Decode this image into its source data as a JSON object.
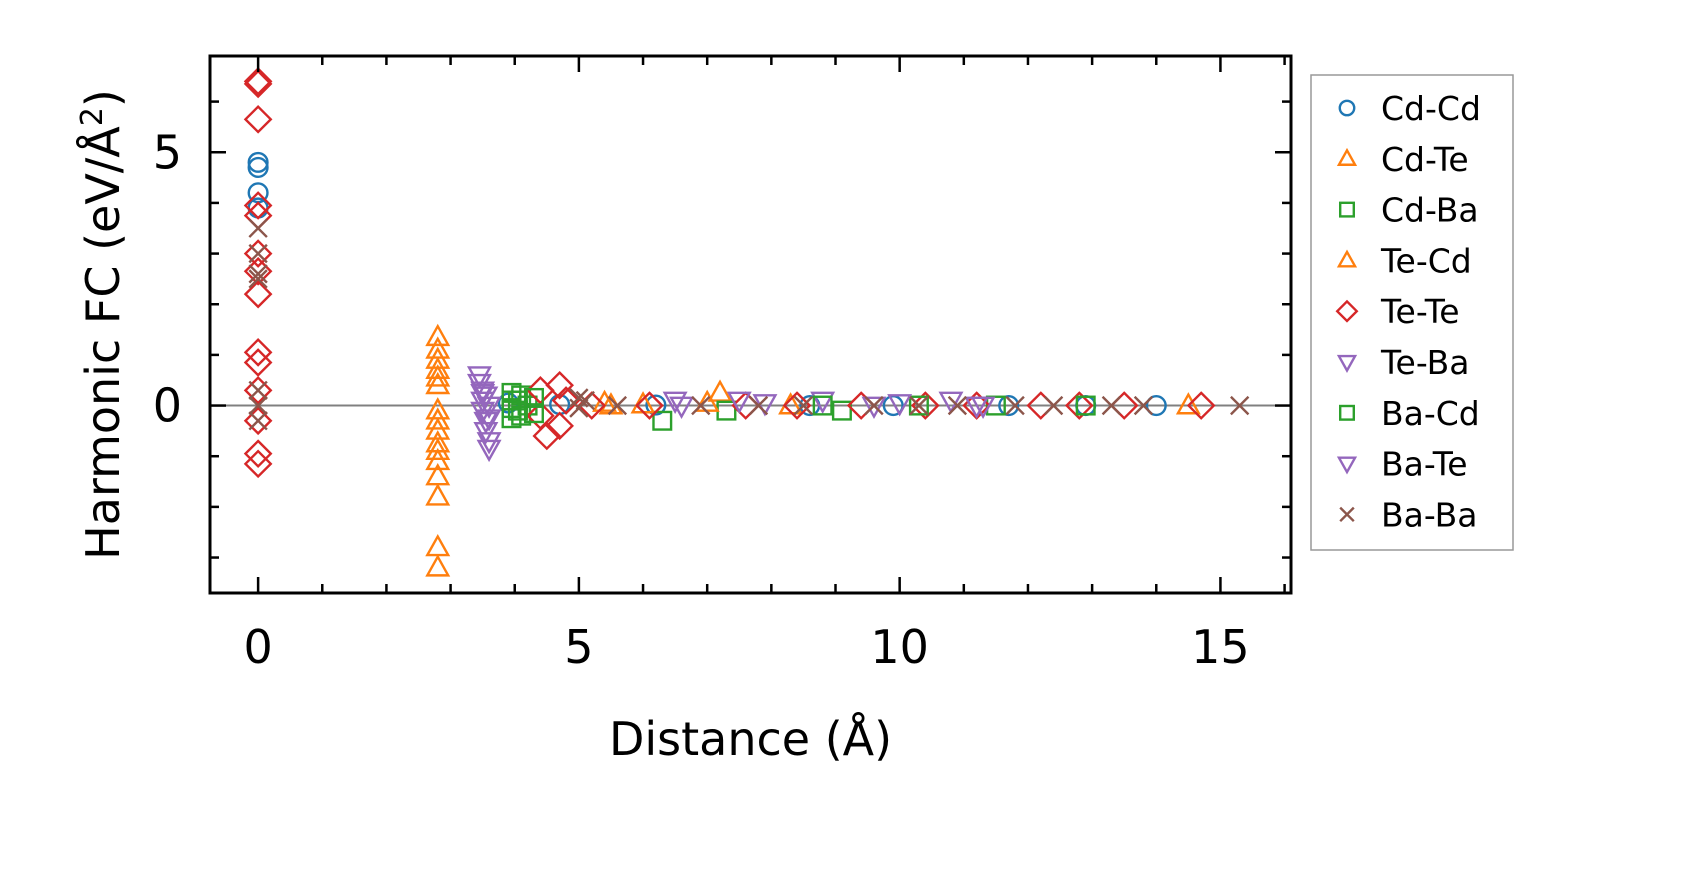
{
  "chart_data": {
    "type": "scatter",
    "xlabel": "Distance (Å)",
    "ylabel_main": "Harmonic FC (eV/Å",
    "ylabel_sup": "2",
    "ylabel_tail": ")",
    "xlim": [
      -0.75,
      16.1
    ],
    "ylim": [
      -3.7,
      6.9
    ],
    "x_ticks": [
      0,
      5,
      10,
      15
    ],
    "x_tick_labels": [
      "0",
      "5",
      "10",
      "15"
    ],
    "y_ticks": [
      0,
      5
    ],
    "y_tick_labels": [
      "0",
      "5"
    ],
    "x_minor_ticks": [
      1,
      2,
      3,
      4,
      6,
      7,
      8,
      9,
      11,
      12,
      13,
      14,
      16
    ],
    "y_minor_ticks": [
      -3,
      -2,
      -1,
      1,
      2,
      3,
      4,
      6
    ],
    "zero_line": 0,
    "legend_position": "outside-right",
    "series": [
      {
        "name": "Cd-Cd",
        "marker": "circle",
        "color": "#1f77b4",
        "points": [
          [
            0,
            4.8
          ],
          [
            0,
            4.7
          ],
          [
            0,
            4.2
          ],
          [
            0,
            3.9
          ],
          [
            14.0,
            0.0
          ],
          [
            3.9,
            0.05
          ],
          [
            4.7,
            0.02
          ],
          [
            6.2,
            0.01
          ],
          [
            8.6,
            0.0
          ],
          [
            9.9,
            0.0
          ],
          [
            11.7,
            0.0
          ],
          [
            12.9,
            0.0
          ]
        ]
      },
      {
        "name": "Cd-Te",
        "marker": "triangle-up",
        "color": "#ff7f0e",
        "points": [
          [
            2.8,
            1.35
          ],
          [
            2.8,
            1.1
          ],
          [
            2.8,
            0.9
          ],
          [
            2.8,
            0.7
          ],
          [
            2.8,
            0.55
          ],
          [
            2.8,
            0.4
          ],
          [
            2.8,
            -0.1
          ],
          [
            2.8,
            -0.3
          ],
          [
            2.8,
            -0.5
          ],
          [
            2.8,
            -0.75
          ],
          [
            2.8,
            -0.9
          ],
          [
            2.8,
            -1.1
          ],
          [
            2.8,
            -1.4
          ],
          [
            2.8,
            -1.8
          ],
          [
            2.8,
            -2.8
          ],
          [
            2.8,
            -3.2
          ],
          [
            5.4,
            0.05
          ],
          [
            7.2,
            0.25
          ],
          [
            14.5,
            0.0
          ]
        ]
      },
      {
        "name": "Cd-Ba",
        "marker": "square",
        "color": "#2ca02c",
        "points": [
          [
            3.95,
            0.25
          ],
          [
            3.95,
            0.1
          ],
          [
            3.95,
            -0.05
          ],
          [
            3.95,
            -0.25
          ],
          [
            4.1,
            0.2
          ],
          [
            4.1,
            -0.2
          ],
          [
            4.2,
            0.0
          ],
          [
            6.3,
            -0.3
          ],
          [
            7.3,
            -0.1
          ],
          [
            9.1,
            -0.1
          ],
          [
            11.5,
            0.0
          ]
        ]
      },
      {
        "name": "Te-Cd",
        "marker": "triangle-up",
        "color": "#ff7f0e",
        "points": [
          [
            5.5,
            0.0
          ],
          [
            6.0,
            0.02
          ],
          [
            7.0,
            0.05
          ],
          [
            8.3,
            0.0
          ]
        ]
      },
      {
        "name": "Te-Te",
        "marker": "diamond",
        "color": "#d62728",
        "points": [
          [
            0,
            6.4
          ],
          [
            0,
            6.35
          ],
          [
            0,
            5.65
          ],
          [
            0,
            3.95
          ],
          [
            0,
            3.75
          ],
          [
            0,
            3.0
          ],
          [
            0,
            2.65
          ],
          [
            0,
            2.2
          ],
          [
            0,
            1.05
          ],
          [
            0,
            0.85
          ],
          [
            0,
            0.3
          ],
          [
            0,
            -0.3
          ],
          [
            0,
            -0.95
          ],
          [
            0,
            -1.15
          ],
          [
            4.4,
            0.3
          ],
          [
            4.4,
            -0.2
          ],
          [
            4.5,
            -0.6
          ],
          [
            4.7,
            0.4
          ],
          [
            4.7,
            -0.4
          ],
          [
            4.8,
            0.1
          ],
          [
            5.2,
            0.0
          ],
          [
            6.1,
            0.0
          ],
          [
            7.6,
            0.0
          ],
          [
            8.4,
            0.0
          ],
          [
            9.4,
            0.0
          ],
          [
            10.4,
            0.0
          ],
          [
            11.2,
            0.0
          ],
          [
            12.2,
            0.0
          ],
          [
            12.8,
            0.0
          ],
          [
            13.5,
            0.0
          ],
          [
            14.7,
            0.0
          ]
        ]
      },
      {
        "name": "Te-Ba",
        "marker": "triangle-down",
        "color": "#9467bd",
        "points": [
          [
            3.45,
            0.6
          ],
          [
            3.45,
            0.45
          ],
          [
            3.5,
            0.3
          ],
          [
            3.5,
            0.1
          ],
          [
            3.5,
            -0.1
          ],
          [
            3.55,
            -0.3
          ],
          [
            3.55,
            -0.5
          ],
          [
            3.6,
            -0.7
          ],
          [
            3.6,
            -0.85
          ],
          [
            3.55,
            0.2
          ],
          [
            3.6,
            0.0
          ],
          [
            6.5,
            0.1
          ],
          [
            7.5,
            0.1
          ],
          [
            8.8,
            0.1
          ],
          [
            9.6,
            0.0
          ],
          [
            10.8,
            0.1
          ],
          [
            11.2,
            0.0
          ]
        ]
      },
      {
        "name": "Ba-Cd",
        "marker": "square",
        "color": "#2ca02c",
        "points": [
          [
            4.05,
            0.1
          ],
          [
            4.05,
            -0.1
          ],
          [
            4.3,
            0.15
          ],
          [
            4.3,
            -0.15
          ],
          [
            8.8,
            0.0
          ],
          [
            10.3,
            0.0
          ],
          [
            12.9,
            0.0
          ]
        ]
      },
      {
        "name": "Ba-Te",
        "marker": "triangle-down",
        "color": "#9467bd",
        "points": [
          [
            3.5,
            0.25
          ],
          [
            3.6,
            -0.25
          ],
          [
            6.6,
            0.0
          ],
          [
            7.9,
            0.05
          ],
          [
            10.0,
            0.05
          ],
          [
            11.3,
            0.0
          ]
        ]
      },
      {
        "name": "Ba-Ba",
        "marker": "x",
        "color": "#8c564b",
        "points": [
          [
            0,
            3.5
          ],
          [
            0,
            3.0
          ],
          [
            0,
            2.6
          ],
          [
            0,
            2.5
          ],
          [
            0,
            0.3
          ],
          [
            0,
            0.0
          ],
          [
            0,
            -0.3
          ],
          [
            5.0,
            0.15
          ],
          [
            5.0,
            -0.05
          ],
          [
            5.1,
            0.1
          ],
          [
            5.6,
            0.0
          ],
          [
            6.9,
            0.0
          ],
          [
            7.8,
            0.0
          ],
          [
            8.5,
            0.0
          ],
          [
            9.6,
            0.0
          ],
          [
            10.3,
            0.0
          ],
          [
            10.9,
            0.0
          ],
          [
            11.8,
            0.0
          ],
          [
            12.4,
            0.0
          ],
          [
            13.3,
            0.0
          ],
          [
            13.8,
            0.0
          ],
          [
            15.3,
            0.0
          ]
        ]
      }
    ]
  }
}
